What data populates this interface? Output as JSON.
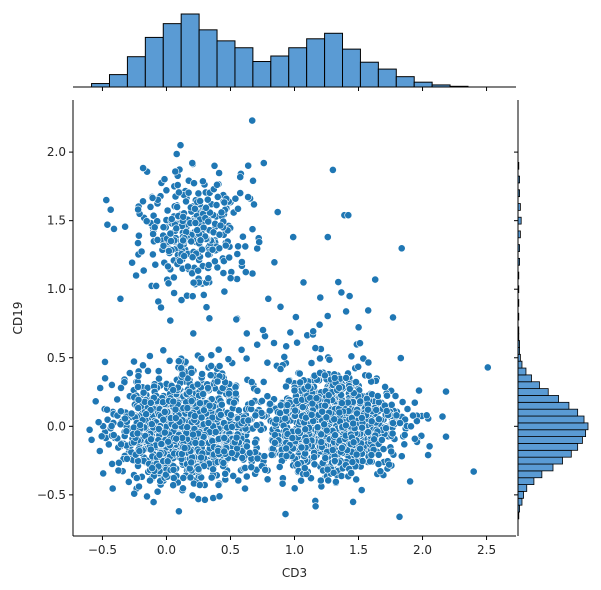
{
  "chart_data": {
    "type": "scatter",
    "title": "",
    "xlabel": "CD3",
    "ylabel": "CD19",
    "xlim": [
      -0.73,
      2.73
    ],
    "ylim": [
      -0.8,
      2.38
    ],
    "x_ticks": [
      -0.5,
      0.0,
      0.5,
      1.0,
      1.5,
      2.0,
      2.5
    ],
    "x_tick_labels": [
      "−0.5",
      "0.0",
      "0.5",
      "1.0",
      "1.5",
      "2.0",
      "2.5"
    ],
    "y_ticks": [
      -0.5,
      0.0,
      0.5,
      1.0,
      1.5,
      2.0
    ],
    "y_tick_labels": [
      "−0.5",
      "0.0",
      "0.5",
      "1.0",
      "1.5",
      "2.0"
    ],
    "grid": false,
    "legend": "none",
    "point_color": "#1f77b4",
    "hist_fill": "#5a9bd4",
    "marginal_x_hist": {
      "bin_edges": [
        -0.585,
        -0.445,
        -0.305,
        -0.165,
        -0.025,
        0.115,
        0.255,
        0.395,
        0.535,
        0.675,
        0.815,
        0.955,
        1.095,
        1.235,
        1.375,
        1.515,
        1.655,
        1.795,
        1.935,
        2.075,
        2.215,
        2.355
      ],
      "counts": [
        5,
        18,
        44,
        72,
        92,
        106,
        83,
        67,
        57,
        37,
        45,
        57,
        70,
        78,
        55,
        36,
        26,
        15,
        7,
        3,
        1
      ]
    },
    "marginal_y_hist": {
      "bin_centers": [
        -0.65,
        -0.6,
        -0.55,
        -0.5,
        -0.45,
        -0.4,
        -0.35,
        -0.3,
        -0.25,
        -0.2,
        -0.15,
        -0.1,
        -0.05,
        0.0,
        0.05,
        0.1,
        0.15,
        0.2,
        0.25,
        0.3,
        0.35,
        0.4,
        0.45,
        0.5,
        0.55,
        0.6,
        0.65,
        0.7,
        0.8,
        0.9,
        1.0,
        1.1,
        1.2,
        1.3,
        1.4,
        1.5,
        1.6,
        1.7,
        1.8,
        1.9
      ],
      "counts": [
        1,
        2,
        5,
        7,
        11,
        20,
        30,
        44,
        56,
        67,
        75,
        81,
        85,
        88,
        83,
        75,
        64,
        51,
        38,
        27,
        17,
        10,
        5,
        3,
        2,
        2,
        1,
        1,
        1,
        1,
        1,
        1,
        2,
        2,
        3,
        4,
        3,
        2,
        2,
        1
      ]
    },
    "clusters": [
      {
        "n": 1300,
        "x_mean": 0.15,
        "x_sd": 0.26,
        "y_mean": -0.02,
        "y_sd": 0.19
      },
      {
        "n": 1100,
        "x_mean": 1.3,
        "x_sd": 0.28,
        "y_mean": 0.0,
        "y_sd": 0.18
      },
      {
        "n": 340,
        "x_mean": 0.2,
        "x_sd": 0.2,
        "y_mean": 1.45,
        "y_sd": 0.22
      },
      {
        "n": 80,
        "x_mean": 0.8,
        "x_sd": 0.45,
        "y_mean": 0.6,
        "y_sd": 0.35
      }
    ],
    "outliers": [
      {
        "x": 0.67,
        "y": 2.23
      },
      {
        "x": 0.11,
        "y": 2.05
      },
      {
        "x": 1.3,
        "y": 1.87
      },
      {
        "x": 0.76,
        "y": 1.92
      },
      {
        "x": 1.39,
        "y": 1.54
      },
      {
        "x": 1.42,
        "y": 1.54
      },
      {
        "x": 1.26,
        "y": 1.38
      },
      {
        "x": 0.99,
        "y": 1.38
      },
      {
        "x": 1.07,
        "y": 1.05
      },
      {
        "x": 1.43,
        "y": 0.95
      },
      {
        "x": 1.63,
        "y": 1.07
      },
      {
        "x": 2.51,
        "y": 0.43
      },
      {
        "x": 2.4,
        "y": -0.33
      },
      {
        "x": 1.82,
        "y": -0.66
      },
      {
        "x": 0.93,
        "y": -0.64
      },
      {
        "x": -0.48,
        "y": 0.47
      },
      {
        "x": -0.36,
        "y": 0.93
      },
      {
        "x": -0.41,
        "y": 1.44
      },
      {
        "x": -0.47,
        "y": 1.65
      },
      {
        "x": -0.53,
        "y": 0.03
      }
    ]
  }
}
